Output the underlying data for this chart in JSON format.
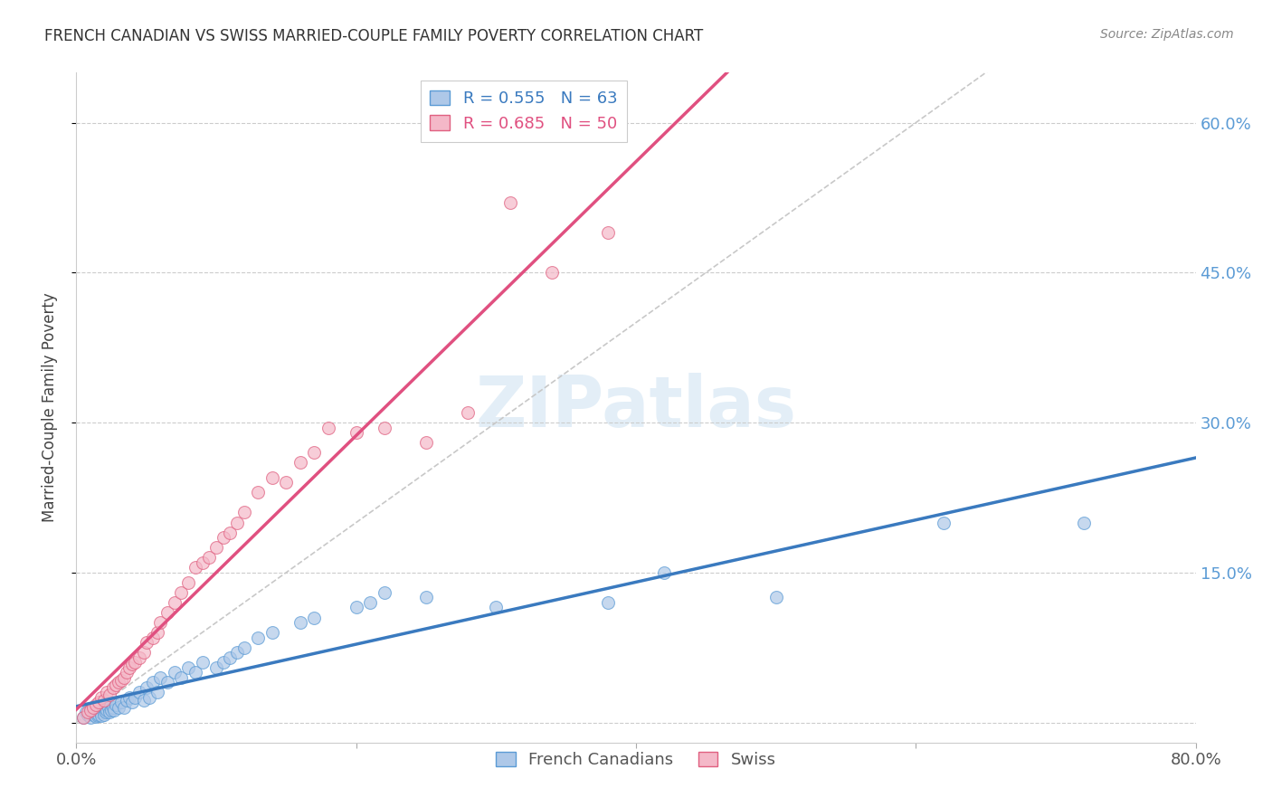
{
  "title": "FRENCH CANADIAN VS SWISS MARRIED-COUPLE FAMILY POVERTY CORRELATION CHART",
  "source": "Source: ZipAtlas.com",
  "ylabel": "Married-Couple Family Poverty",
  "xlim": [
    0.0,
    0.8
  ],
  "ylim": [
    -0.02,
    0.65
  ],
  "ytick_positions": [
    0.0,
    0.15,
    0.3,
    0.45,
    0.6
  ],
  "ytick_labels": [
    "",
    "15.0%",
    "30.0%",
    "45.0%",
    "60.0%"
  ],
  "xtick_positions": [
    0.0,
    0.2,
    0.4,
    0.6,
    0.8
  ],
  "xtick_labels": [
    "0.0%",
    "",
    "",
    "",
    "80.0%"
  ],
  "legend_r1": "R = 0.555",
  "legend_n1": "N = 63",
  "legend_r2": "R = 0.685",
  "legend_n2": "N = 50",
  "color_blue_fill": "#aec8e8",
  "color_pink_fill": "#f4b8c8",
  "color_blue_edge": "#5b9bd5",
  "color_pink_edge": "#e06080",
  "color_blue_line": "#3a7abf",
  "color_pink_line": "#e05080",
  "color_diag": "#c8c8c8",
  "watermark": "ZIPatlas",
  "fc_x": [
    0.005,
    0.007,
    0.008,
    0.01,
    0.01,
    0.012,
    0.013,
    0.014,
    0.015,
    0.015,
    0.016,
    0.017,
    0.018,
    0.019,
    0.02,
    0.02,
    0.021,
    0.022,
    0.023,
    0.024,
    0.025,
    0.026,
    0.027,
    0.028,
    0.03,
    0.032,
    0.034,
    0.036,
    0.038,
    0.04,
    0.042,
    0.045,
    0.048,
    0.05,
    0.052,
    0.055,
    0.058,
    0.06,
    0.065,
    0.07,
    0.075,
    0.08,
    0.085,
    0.09,
    0.1,
    0.105,
    0.11,
    0.115,
    0.12,
    0.13,
    0.14,
    0.16,
    0.17,
    0.2,
    0.21,
    0.22,
    0.25,
    0.3,
    0.38,
    0.42,
    0.5,
    0.62,
    0.72
  ],
  "fc_y": [
    0.005,
    0.01,
    0.008,
    0.005,
    0.012,
    0.008,
    0.01,
    0.006,
    0.007,
    0.015,
    0.008,
    0.01,
    0.007,
    0.012,
    0.008,
    0.015,
    0.01,
    0.012,
    0.015,
    0.01,
    0.012,
    0.015,
    0.012,
    0.018,
    0.015,
    0.02,
    0.015,
    0.022,
    0.025,
    0.02,
    0.025,
    0.03,
    0.022,
    0.035,
    0.025,
    0.04,
    0.03,
    0.045,
    0.04,
    0.05,
    0.045,
    0.055,
    0.05,
    0.06,
    0.055,
    0.06,
    0.065,
    0.07,
    0.075,
    0.085,
    0.09,
    0.1,
    0.105,
    0.115,
    0.12,
    0.13,
    0.125,
    0.115,
    0.12,
    0.15,
    0.125,
    0.2,
    0.2
  ],
  "sw_x": [
    0.005,
    0.008,
    0.01,
    0.012,
    0.014,
    0.016,
    0.018,
    0.02,
    0.022,
    0.024,
    0.026,
    0.028,
    0.03,
    0.032,
    0.034,
    0.036,
    0.038,
    0.04,
    0.042,
    0.045,
    0.048,
    0.05,
    0.055,
    0.058,
    0.06,
    0.065,
    0.07,
    0.075,
    0.08,
    0.085,
    0.09,
    0.095,
    0.1,
    0.105,
    0.11,
    0.115,
    0.12,
    0.13,
    0.14,
    0.15,
    0.16,
    0.17,
    0.18,
    0.2,
    0.22,
    0.25,
    0.28,
    0.31,
    0.34,
    0.38
  ],
  "sw_y": [
    0.005,
    0.01,
    0.012,
    0.015,
    0.018,
    0.02,
    0.025,
    0.022,
    0.03,
    0.028,
    0.035,
    0.038,
    0.04,
    0.042,
    0.045,
    0.05,
    0.055,
    0.058,
    0.06,
    0.065,
    0.07,
    0.08,
    0.085,
    0.09,
    0.1,
    0.11,
    0.12,
    0.13,
    0.14,
    0.155,
    0.16,
    0.165,
    0.175,
    0.185,
    0.19,
    0.2,
    0.21,
    0.23,
    0.245,
    0.24,
    0.26,
    0.27,
    0.295,
    0.29,
    0.295,
    0.28,
    0.31,
    0.52,
    0.45,
    0.49
  ]
}
